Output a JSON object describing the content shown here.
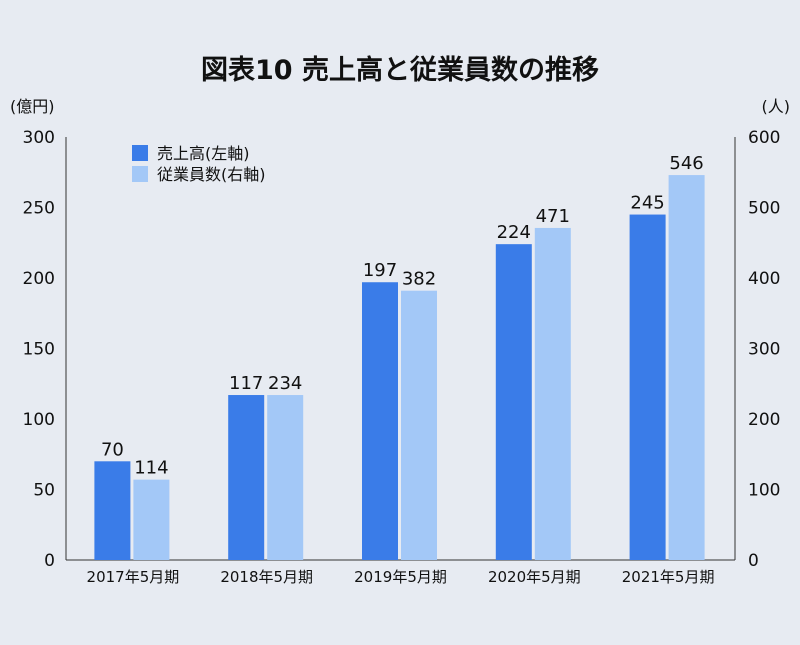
{
  "chart_data": {
    "type": "bar",
    "title": "図表10 売上高と従業員数の推移",
    "categories": [
      "2017年5月期",
      "2018年5月期",
      "2019年5月期",
      "2020年5月期",
      "2021年5月期"
    ],
    "series": [
      {
        "name": "売上高(左軸)",
        "axis": "left",
        "color": "#3a7ce8",
        "values": [
          70,
          117,
          197,
          224,
          245
        ]
      },
      {
        "name": "従業員数(右軸)",
        "axis": "right",
        "color": "#a3c8f7",
        "values": [
          114,
          234,
          382,
          471,
          546
        ]
      }
    ],
    "y_left": {
      "unit": "(億円)",
      "range": [
        0,
        300
      ],
      "ticks": [
        "0",
        "50",
        "100",
        "150",
        "200",
        "250",
        "300"
      ]
    },
    "y_right": {
      "unit": "(人)",
      "range": [
        0,
        600
      ],
      "ticks": [
        "0",
        "100",
        "200",
        "300",
        "400",
        "500",
        "600"
      ]
    },
    "grid": false,
    "legend_position": "top-left"
  },
  "colors": {
    "background": "#e7ebf2",
    "axis": "#333333"
  }
}
